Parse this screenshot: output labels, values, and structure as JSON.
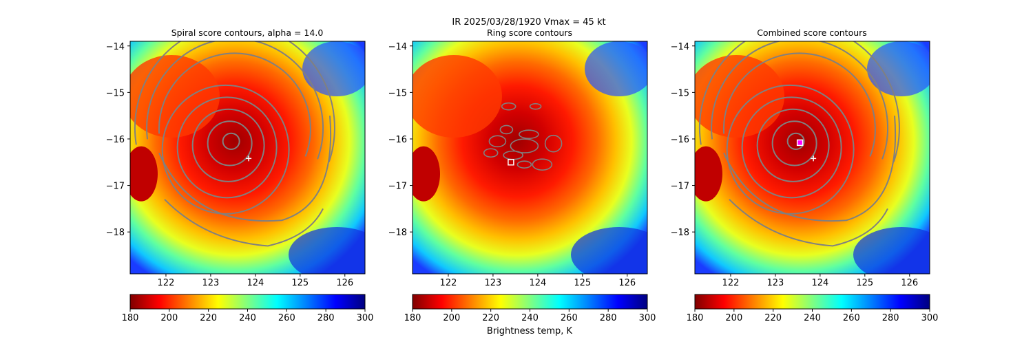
{
  "figure": {
    "suptitle_line1": "IR  2025/03/28/1920    Vmax = 45 kt",
    "colorbar_label": "Brightness temp, K"
  },
  "colorbar": {
    "range": [
      180,
      300
    ],
    "ticks": [
      "180",
      "200",
      "220",
      "240",
      "260",
      "280",
      "300"
    ],
    "colormap": "jet_r",
    "colors": [
      "#800000",
      "#ff0000",
      "#ff8000",
      "#ffff00",
      "#80ff80",
      "#00ffff",
      "#0080ff",
      "#0000ff",
      "#000080"
    ]
  },
  "chart_data": [
    {
      "type": "heatmap",
      "title": "Spiral score contours, alpha = 14.0",
      "xlim": [
        121.2,
        126.45
      ],
      "ylim": [
        -18.9,
        -13.9
      ],
      "xticks": [
        "122",
        "123",
        "124",
        "125",
        "126"
      ],
      "yticks": [
        "−14",
        "−15",
        "−16",
        "−17",
        "−18"
      ],
      "storm_center": [
        123.55,
        -16.05
      ],
      "contours": "spiral",
      "markers": [
        {
          "kind": "plus",
          "lon": 123.85,
          "lat": -16.42,
          "color": "#ffffff"
        }
      ]
    },
    {
      "type": "heatmap",
      "title": "Ring score contours",
      "xlim": [
        121.2,
        126.45
      ],
      "ylim": [
        -18.9,
        -13.9
      ],
      "xticks": [
        "122",
        "123",
        "124",
        "125",
        "126"
      ],
      "yticks": [
        "−14",
        "−15",
        "−16",
        "−17",
        "−18"
      ],
      "storm_center": [
        123.55,
        -16.05
      ],
      "contours": "ring",
      "markers": [
        {
          "kind": "square",
          "lon": 123.4,
          "lat": -16.5,
          "color": "#ffffff"
        }
      ]
    },
    {
      "type": "heatmap",
      "title": "Combined score contours",
      "xlim": [
        121.2,
        126.45
      ],
      "ylim": [
        -18.9,
        -13.9
      ],
      "xticks": [
        "122",
        "123",
        "124",
        "125",
        "126"
      ],
      "yticks": [
        "−14",
        "−15",
        "−16",
        "−17",
        "−18"
      ],
      "storm_center": [
        123.55,
        -16.05
      ],
      "contours": "combined",
      "markers": [
        {
          "kind": "plus",
          "lon": 123.85,
          "lat": -16.42,
          "color": "#ffffff"
        },
        {
          "kind": "square",
          "lon": 123.55,
          "lat": -16.08,
          "color": "#ff00ff"
        }
      ]
    }
  ]
}
